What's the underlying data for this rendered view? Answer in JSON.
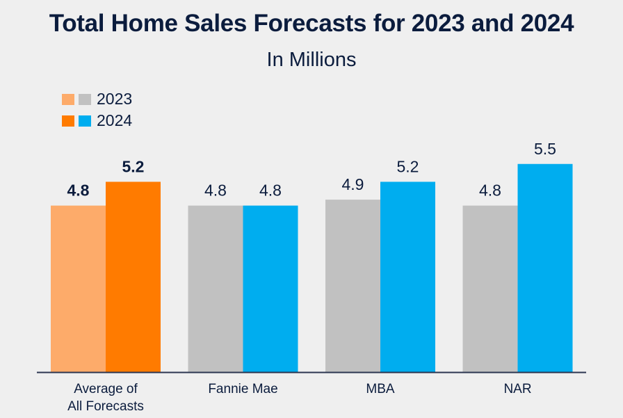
{
  "chart_data": {
    "type": "bar",
    "title": "Total Home Sales Forecasts for 2023 and 2024",
    "subtitle": "In Millions",
    "xlabel": "",
    "ylabel": "",
    "ylim": [
      2.0,
      6.0
    ],
    "grid": false,
    "legend_position": "top-left",
    "categories": [
      "Average of\nAll Forecasts",
      "Fannie Mae",
      "MBA",
      "NAR"
    ],
    "series": [
      {
        "name": "2023",
        "values": [
          4.8,
          4.8,
          4.9,
          4.8
        ],
        "labels": [
          "4.8",
          "4.8",
          "4.9",
          "4.8"
        ]
      },
      {
        "name": "2024",
        "values": [
          5.2,
          4.8,
          5.2,
          5.5
        ],
        "labels": [
          "5.2",
          "4.8",
          "5.2",
          "5.5"
        ]
      }
    ],
    "colors": {
      "2023_highlight": "#fdab6a",
      "2024_highlight": "#ff7b00",
      "2023": "#c1c1c1",
      "2024": "#00adef",
      "axis": "#2b3550",
      "text": "#0b1c3d"
    },
    "highlighted_category_index": 0
  },
  "legend": [
    {
      "label": "2023",
      "swatches": [
        "#fdab6a",
        "#c1c1c1"
      ]
    },
    {
      "label": "2024",
      "swatches": [
        "#ff7b00",
        "#00adef"
      ]
    }
  ]
}
